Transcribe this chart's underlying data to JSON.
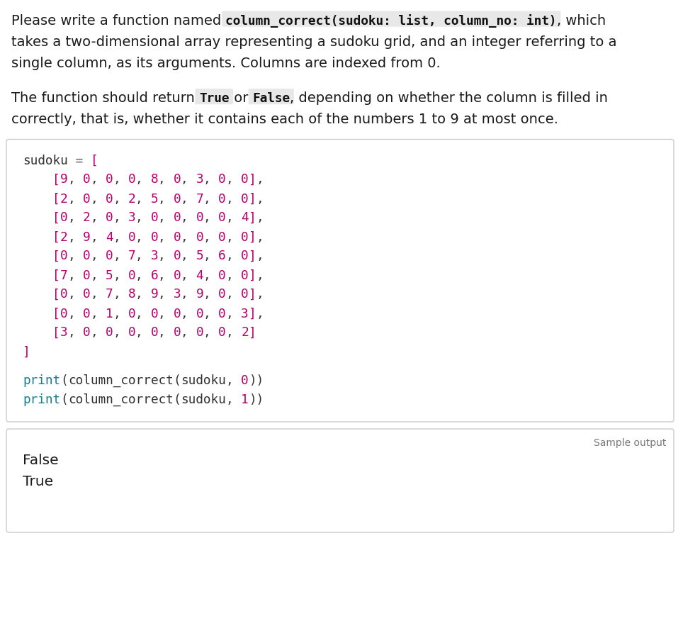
{
  "bg_color": "#ffffff",
  "normal_text_color": "#1a1a1a",
  "code_box_bg": "#ffffff",
  "code_box_border": "#cccccc",
  "color_keyword": "#1a7f8e",
  "color_number": "#b5006b",
  "color_bracket": "#b5006b",
  "color_equals": "#555555",
  "color_default": "#333333",
  "color_inline_code": "#111111",
  "inline_code_bg": "#e8e8e8",
  "sample_output_label": "Sample output",
  "output_lines": [
    "False",
    "True"
  ],
  "sudoku_data": [
    [
      9,
      0,
      0,
      0,
      8,
      0,
      3,
      0,
      0
    ],
    [
      2,
      0,
      0,
      2,
      5,
      0,
      7,
      0,
      0
    ],
    [
      0,
      2,
      0,
      3,
      0,
      0,
      0,
      0,
      4
    ],
    [
      2,
      9,
      4,
      0,
      0,
      0,
      0,
      0,
      0
    ],
    [
      0,
      0,
      0,
      7,
      3,
      0,
      5,
      6,
      0
    ],
    [
      7,
      0,
      5,
      0,
      6,
      0,
      4,
      0,
      0
    ],
    [
      0,
      0,
      7,
      8,
      9,
      3,
      9,
      0,
      0
    ],
    [
      0,
      0,
      1,
      0,
      0,
      0,
      0,
      0,
      3
    ],
    [
      3,
      0,
      0,
      0,
      0,
      0,
      0,
      0,
      2
    ]
  ],
  "desc_parts_line1": [
    {
      "text": "Please write a function named ",
      "style": "normal"
    },
    {
      "text": "column_correct(sudoku: list, column_no: int)",
      "style": "code"
    },
    {
      "text": ", which",
      "style": "normal"
    }
  ],
  "desc_line2": "takes a two-dimensional array representing a sudoku grid, and an integer referring to a",
  "desc_line3": "single column, as its arguments. Columns are indexed from 0.",
  "desc_parts_line4": [
    {
      "text": "The function should return ",
      "style": "normal"
    },
    {
      "text": "True",
      "style": "code"
    },
    {
      "text": " or ",
      "style": "normal"
    },
    {
      "text": "False",
      "style": "code"
    },
    {
      "text": ", depending on whether the column is filled in",
      "style": "normal"
    }
  ],
  "desc_line5": "correctly, that is, whether it contains each of the numbers 1 to 9 at most once."
}
